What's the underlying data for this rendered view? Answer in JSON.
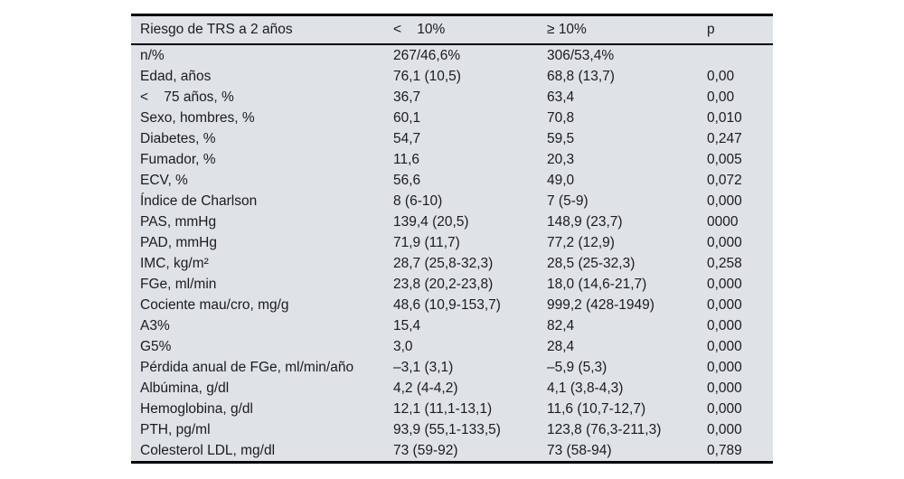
{
  "page": {
    "background_color": "#ffffff"
  },
  "table_style": {
    "background_color": "#dfe3e7",
    "rule_color": "#000000",
    "text_color": "#1b1b1b"
  },
  "chart_data": {
    "type": "table",
    "title": "Riesgo de TRS a 2 años",
    "columns": [
      "Riesgo de TRS a 2 años",
      "<    10%",
      "≥ 10%",
      "p"
    ],
    "rows": [
      [
        "n/%",
        "267/46,6%",
        "306/53,4%",
        ""
      ],
      [
        "Edad, años",
        "76,1 (10,5)",
        "68,8 (13,7)",
        "0,00"
      ],
      [
        "<    75 años, %",
        "36,7",
        "63,4",
        "0,00"
      ],
      [
        "Sexo, hombres, %",
        "60,1",
        "70,8",
        "0,010"
      ],
      [
        "Diabetes, %",
        "54,7",
        "59,5",
        "0,247"
      ],
      [
        "Fumador, %",
        "11,6",
        "20,3",
        "0,005"
      ],
      [
        "ECV, %",
        "56,6",
        "49,0",
        "0,072"
      ],
      [
        "Índice de Charlson",
        "8 (6-10)",
        "7 (5-9)",
        "0,000"
      ],
      [
        "PAS, mmHg",
        "139,4 (20,5)",
        "148,9 (23,7)",
        "0000"
      ],
      [
        "PAD, mmHg",
        "71,9 (11,7)",
        "77,2 (12,9)",
        "0,000"
      ],
      [
        "IMC, kg/m²",
        "28,7 (25,8-32,3)",
        "28,5 (25-32,3)",
        "0,258"
      ],
      [
        "FGe, ml/min",
        "23,8 (20,2-23,8)",
        "18,0 (14,6-21,7)",
        "0,000"
      ],
      [
        "Cociente mau/cro, mg/g",
        "48,6 (10,9-153,7)",
        "999,2 (428-1949)",
        "0,000"
      ],
      [
        "A3%",
        "15,4",
        "82,4",
        "0,000"
      ],
      [
        "G5%",
        "3,0",
        "28,4",
        "0,000"
      ],
      [
        "Pérdida anual de FGe, ml/min/año",
        "–3,1 (3,1)",
        "–5,9 (5,3)",
        "0,000"
      ],
      [
        "Albúmina, g/dl",
        "4,2 (4-4,2)",
        "4,1 (3,8-4,3)",
        "0,000"
      ],
      [
        "Hemoglobina, g/dl",
        "12,1 (11,1-13,1)",
        "11,6 (10,7-12,7)",
        "0,000"
      ],
      [
        "PTH, pg/ml",
        "93,9 (55,1-133,5)",
        "123,8 (76,3-211,3)",
        "0,000"
      ],
      [
        "Colesterol LDL, mg/dl",
        "73 (59-92)",
        "73 (58-94)",
        "0,789"
      ]
    ]
  }
}
